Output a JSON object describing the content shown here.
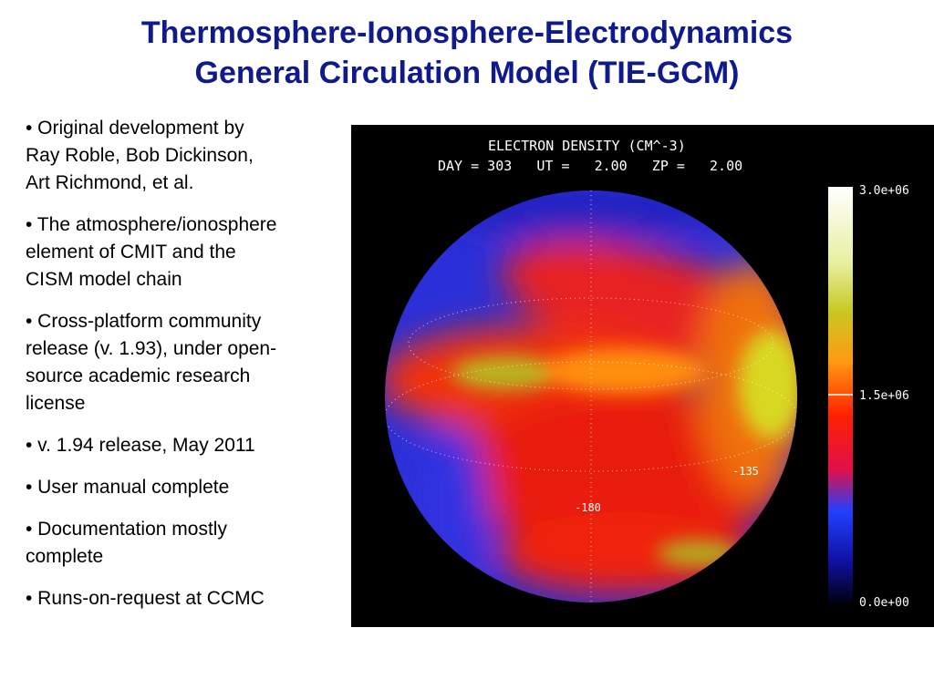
{
  "header": {
    "title_lines": [
      "Thermosphere-Ionosphere-Electrodynamics",
      "General Circulation Model (TIE-GCM)"
    ]
  },
  "bullets": [
    [
      "• Original development by",
      "Ray Roble, Bob Dickinson,",
      "Art Richmond, et al."
    ],
    [
      "• The atmosphere/ionosphere",
      "element of CMIT and the",
      "CISM model chain"
    ],
    [
      "• Cross-platform community",
      "release (v. 1.93), under open-",
      "source academic research",
      "license"
    ],
    [
      "• v. 1.94 release, May 2011"
    ],
    [
      "• User manual complete"
    ],
    [
      "• Documentation mostly",
      "complete"
    ],
    [
      "• Runs-on-request at CCMC"
    ]
  ],
  "figure": {
    "title": "ELECTRON DENSITY (CM^-3)",
    "subtitle": "DAY = 303   UT =   2.00   ZP =   2.00",
    "colorbar_labels": [
      "3.0e+06",
      "1.5e+06",
      "0.0e+00"
    ],
    "longitude_labels": [
      "-135",
      "-180"
    ]
  }
}
